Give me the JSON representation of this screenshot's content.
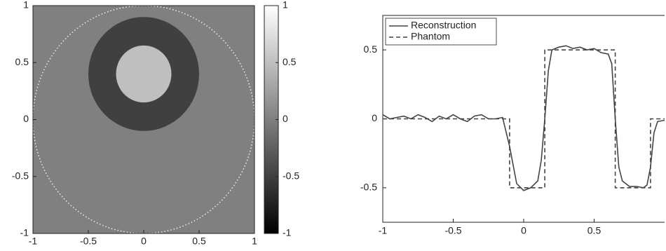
{
  "chart_data": [
    {
      "type": "image",
      "xlim": [
        -1,
        1
      ],
      "ylim": [
        -1,
        1
      ],
      "xticks": [
        -1,
        -0.5,
        0,
        0.5,
        1
      ],
      "yticks": [
        -1,
        -0.5,
        0,
        0.5,
        1
      ],
      "background_value": 0,
      "support_radius": 1,
      "regions": [
        {
          "cx": 0,
          "cy": 0.4,
          "r": 0.5,
          "value": -0.5
        },
        {
          "cx": 0,
          "cy": 0.4,
          "r": 0.25,
          "value": 0.5
        }
      ],
      "colormap": "gray",
      "clim": [
        -1,
        1
      ],
      "cticks": [
        -1,
        -0.5,
        0,
        0.5,
        1
      ]
    },
    {
      "type": "line",
      "xlim": [
        -1,
        1
      ],
      "ylim": [
        -0.75,
        0.75
      ],
      "xticks": [
        -1,
        -0.5,
        0,
        0.5
      ],
      "yticks": [
        -0.5,
        0,
        0.5
      ],
      "legend": "upper left",
      "series": [
        {
          "name": "Reconstruction",
          "color": "#444444",
          "dash": "solid",
          "x": [
            -1,
            -0.95,
            -0.9,
            -0.85,
            -0.8,
            -0.75,
            -0.7,
            -0.65,
            -0.6,
            -0.55,
            -0.5,
            -0.45,
            -0.4,
            -0.35,
            -0.3,
            -0.25,
            -0.2,
            -0.15,
            -0.1,
            -0.05,
            0,
            0.05,
            0.1,
            0.125,
            0.15,
            0.175,
            0.2,
            0.25,
            0.3,
            0.35,
            0.4,
            0.45,
            0.5,
            0.55,
            0.6,
            0.625,
            0.65,
            0.675,
            0.7,
            0.75,
            0.8,
            0.85,
            0.875,
            0.9,
            0.925,
            0.95,
            1
          ],
          "values": [
            0.03,
            0.0,
            0.01,
            0.02,
            0.0,
            0.03,
            0.01,
            -0.02,
            0.02,
            0.0,
            0.03,
            0.0,
            -0.02,
            0.02,
            0.03,
            0.0,
            0.0,
            0.01,
            -0.2,
            -0.47,
            -0.52,
            -0.5,
            -0.45,
            -0.3,
            0.0,
            0.35,
            0.5,
            0.52,
            0.53,
            0.51,
            0.52,
            0.5,
            0.51,
            0.48,
            0.47,
            0.4,
            0.0,
            -0.35,
            -0.45,
            -0.49,
            -0.49,
            -0.5,
            -0.48,
            -0.35,
            -0.1,
            -0.02,
            -0.01
          ]
        },
        {
          "name": "Phantom",
          "color": "#444444",
          "dash": "dashed",
          "x": [
            -1,
            -0.1,
            -0.1,
            0.15,
            0.15,
            0.65,
            0.65,
            0.9,
            0.9,
            1
          ],
          "values": [
            0,
            0,
            -0.5,
            -0.5,
            0.5,
            0.5,
            -0.5,
            -0.5,
            0,
            0
          ]
        }
      ]
    }
  ]
}
